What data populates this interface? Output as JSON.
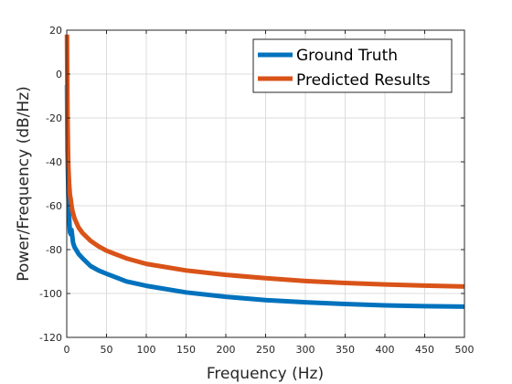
{
  "chart_data": {
    "type": "line",
    "title": "",
    "xlabel": "Frequency (Hz)",
    "ylabel": "Power/Frequency (dB/Hz)",
    "xlim": [
      0,
      500
    ],
    "ylim": [
      -120,
      20
    ],
    "xticks": [
      0,
      50,
      100,
      150,
      200,
      250,
      300,
      350,
      400,
      450,
      500
    ],
    "yticks": [
      -120,
      -100,
      -80,
      -60,
      -40,
      -20,
      0,
      20
    ],
    "grid": true,
    "legend_position": "top-right",
    "series": [
      {
        "name": "Ground Truth",
        "color": "#0072BD",
        "x": [
          0.3,
          0.6,
          1,
          1.5,
          2,
          3,
          4,
          5,
          6,
          7,
          8,
          10,
          15,
          20,
          30,
          40,
          50,
          75,
          100,
          150,
          200,
          250,
          300,
          350,
          400,
          450,
          500
        ],
        "y": [
          -5,
          -20,
          -35,
          -45,
          -55,
          -65,
          -72,
          -73,
          -71,
          -74,
          -77,
          -79,
          -82,
          -84,
          -87.5,
          -89.5,
          -91,
          -94.5,
          -96.5,
          -99.5,
          -101.5,
          -103,
          -104,
          -104.8,
          -105.4,
          -105.8,
          -106
        ]
      },
      {
        "name": "Predicted Results",
        "color": "#D95319",
        "x": [
          0.3,
          0.6,
          1,
          1.5,
          2,
          3,
          4,
          5,
          6,
          7,
          8,
          10,
          15,
          20,
          30,
          40,
          50,
          75,
          100,
          150,
          200,
          250,
          300,
          350,
          400,
          450,
          500
        ],
        "y": [
          18,
          0,
          -20,
          -32,
          -42,
          -50,
          -55,
          -57,
          -60,
          -62,
          -63.5,
          -66,
          -70,
          -72.5,
          -76,
          -78.5,
          -80.5,
          -84,
          -86.5,
          -89.5,
          -91.5,
          -93,
          -94.3,
          -95.2,
          -95.9,
          -96.4,
          -96.8
        ]
      }
    ]
  }
}
